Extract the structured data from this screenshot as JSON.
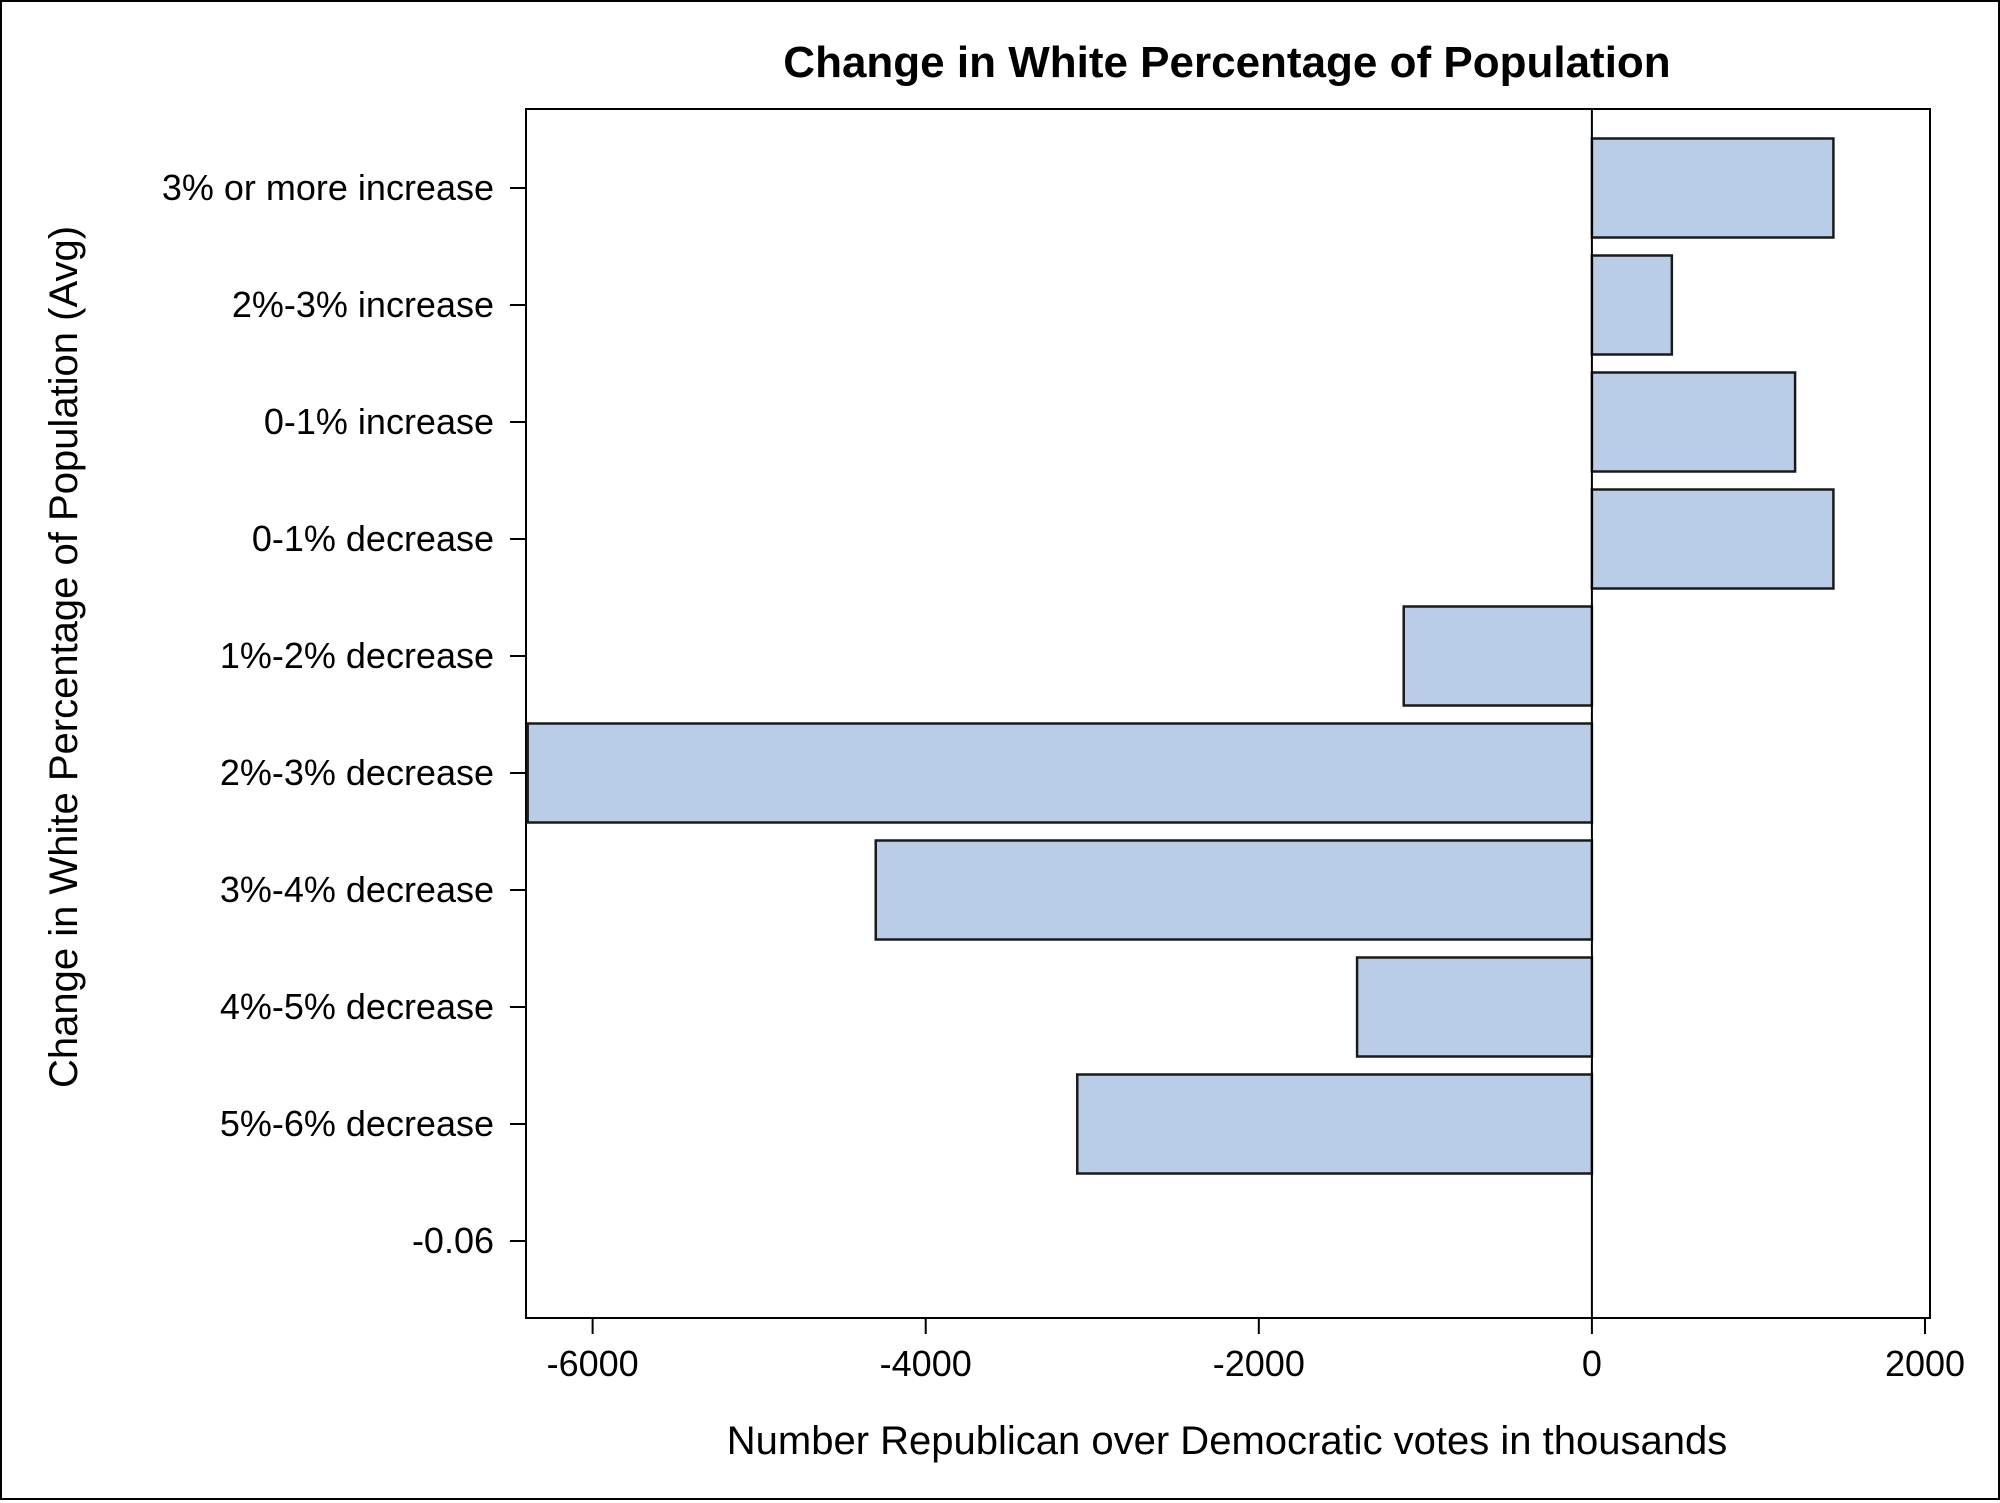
{
  "chart_data": {
    "type": "bar",
    "orientation": "horizontal",
    "title": "Change in White Percentage of Population",
    "xlabel": "Number Republican over Democratic votes in thousands",
    "ylabel": "Change in White Percentage of Population (Avg)",
    "categories": [
      "3% or more increase",
      "2%-3% increase",
      "0-1% increase",
      "0-1% decrease",
      "1%-2% decrease",
      "2%-3% decrease",
      "3%-4% decrease",
      "4%-5% decrease",
      "5%-6% decrease",
      "-0.06"
    ],
    "values": [
      1450,
      480,
      1220,
      1450,
      -1130,
      -6390,
      -4300,
      -1410,
      -3090,
      null
    ],
    "xlim": [
      -6400,
      2030
    ],
    "xticks": [
      -6000,
      -4000,
      -2000,
      0,
      2000
    ],
    "grid": false,
    "legend": "none",
    "colors": {
      "bar_fill": "#b9cde6",
      "bar_stroke": "#1a1a1a"
    }
  }
}
